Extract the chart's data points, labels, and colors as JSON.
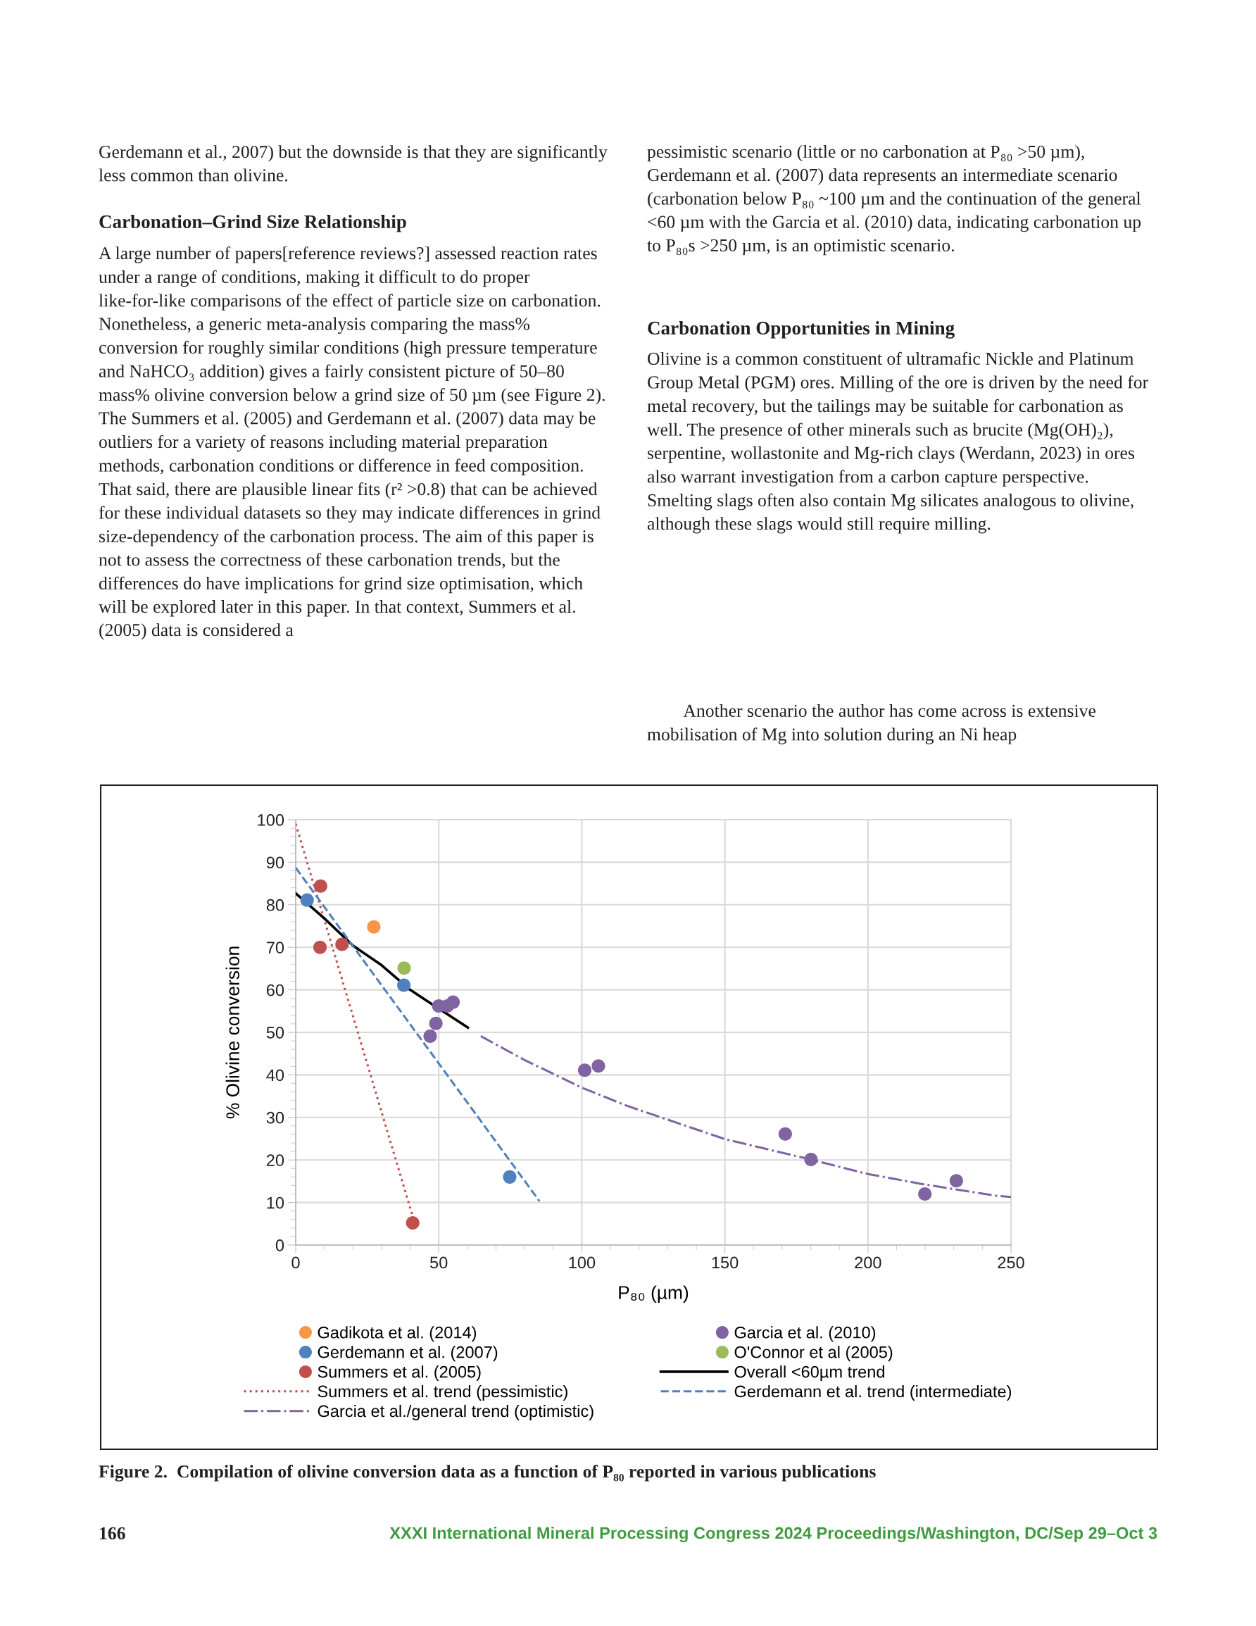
{
  "chart_data": {
    "type": "scatter",
    "title": "Figure 2.  Compilation of olivine conversion data as a function of P₈₀ reported in various publications",
    "xlabel": "P₈₀ (µm)",
    "ylabel": "% Olivine conversion",
    "xlim": [
      0,
      250
    ],
    "xticks": [
      0,
      50,
      100,
      150,
      200,
      250
    ],
    "ylim": [
      0,
      100
    ],
    "yticks": [
      0,
      10,
      20,
      30,
      40,
      50,
      60,
      70,
      80,
      90,
      100
    ],
    "grid": true,
    "legend": "bottom",
    "series": [
      {
        "name": "Gadikota et al. (2014)",
        "marker": "circle",
        "color": "#f79646",
        "x": [
          27.3
        ],
        "values": [
          74.8
        ]
      },
      {
        "name": "Gerdemann et al. (2007)",
        "marker": "circle",
        "color": "#4f81bd",
        "x": [
          4.0,
          37.8,
          74.8
        ],
        "values": [
          81.1,
          61.1,
          16.0
        ]
      },
      {
        "name": "Summers et al. (2005)",
        "marker": "circle",
        "color": "#c0504d",
        "x": [
          8.7,
          8.5,
          16.2,
          40.9
        ],
        "values": [
          84.4,
          70.0,
          70.7,
          5.2
        ]
      },
      {
        "name": "Summers et al. trend (pessimistic)",
        "type": "line",
        "marker": "none",
        "line_style": "dotted",
        "color": "#c0504d",
        "x": [
          0,
          41
        ],
        "values": [
          99.0,
          6.5
        ]
      },
      {
        "name": "Garcia et al./general trend (optimistic)",
        "type": "line",
        "marker": "none",
        "line_style": "dashdot",
        "color": "#8064a2",
        "x": [
          64.7,
          80,
          100,
          115.5,
          150,
          180,
          200,
          219.3,
          244.7,
          250
        ],
        "values": [
          49.1,
          43.5,
          37.0,
          32.8,
          24.9,
          20.1,
          16.7,
          14.3,
          11.6,
          11.3
        ]
      },
      {
        "name": "Garcia et al. (2010)",
        "marker": "circle",
        "color": "#8064a2",
        "x": [
          50.0,
          53.0,
          55.0,
          49.0,
          47.0,
          101.0,
          105.8,
          171.1,
          180.1,
          219.9,
          230.9
        ],
        "values": [
          56.2,
          56.2,
          57.1,
          52.1,
          49.1,
          41.1,
          42.1,
          26.1,
          20.1,
          12.0,
          15.1
        ]
      },
      {
        "name": "O'Connor et al (2005)",
        "marker": "circle",
        "color": "#9bbb59",
        "x": [
          37.9
        ],
        "values": [
          65.1
        ]
      },
      {
        "name": "Overall <60µm trend",
        "type": "line",
        "marker": "none",
        "line_style": "solid",
        "color": "#000000",
        "x": [
          0,
          10,
          20,
          30,
          40,
          45,
          60.2
        ],
        "values": [
          82.7,
          76.8,
          70.4,
          65.8,
          60.0,
          57.8,
          51.1
        ]
      },
      {
        "name": "Gerdemann et al. trend (intermediate)",
        "type": "line",
        "marker": "none",
        "line_style": "dashed",
        "color": "#4f81bd",
        "x": [
          0,
          85.2
        ],
        "values": [
          88.7,
          10.3
        ]
      }
    ],
    "annotations": [
      "Gerdemann et al., 2007) but the downside is that they are significantly less common than olivine.",
      "Carbonation–Grind Size Relationship",
      "A large number of papers[reference reviews?] assessed reaction rates under a range of conditions, making it difficult to do proper like-for-like comparisons of the effect of particle size on carbonation. Nonetheless, a generic meta-analysis comparing the mass% conversion for roughly similar conditions (high pressure temperature and NaHCO₃ addition) gives a fairly consistent picture of 50–80 mass% olivine conversion below a grind size of 50 µm (see Figure 2). The Summers et al. (2005) and Gerdemann et al. (2007) data may be outliers for a variety of reasons including material preparation methods, carbonation conditions or difference in feed composition. That said, there are plausible linear fits (r² >0.8) that can be achieved for these individual datasets so they may indicate differences in grind size-dependency of the carbonation process. The aim of this paper is not to assess the correctness of these carbonation trends, but the differences do have implications for grind size optimisation, which will be explored later in this paper. In that context, Summers et al. (2005) data is considered a",
      "pessimistic scenario (little or no carbonation at P₈₀ >50 µm), Gerdemann et al. (2007) data represents an intermediate scenario (carbonation below P₈₀ ~100 µm and the continuation of the general <60 µm with the Garcia et al. (2010) data, indicating carbonation up to P₈₀s >250 µm, is an optimistic scenario.",
      "Carbonation Opportunities in Mining",
      "Olivine is a common constituent of ultramafic Nickle and Platinum Group Metal (PGM) ores. Milling of the ore is driven by the need for metal recovery, but the tailings may be suitable for carbonation as well. The presence of other minerals such as brucite (Mg(OH)₂), serpentine, wollastonite and Mg-rich clays (Werdann, 2023) in ores also warrant investigation from a carbon capture perspective. Smelting slags often also contain Mg silicates analogous to olivine, although these slags would still require milling.",
      "Another scenario the author has come across is extensive mobilisation of Mg into solution during an Ni heap",
      "166",
      "XXXI International Mineral Processing Congress 2024 Proceedings/Washington, DC/Sep 29–Oct 3"
    ]
  }
}
